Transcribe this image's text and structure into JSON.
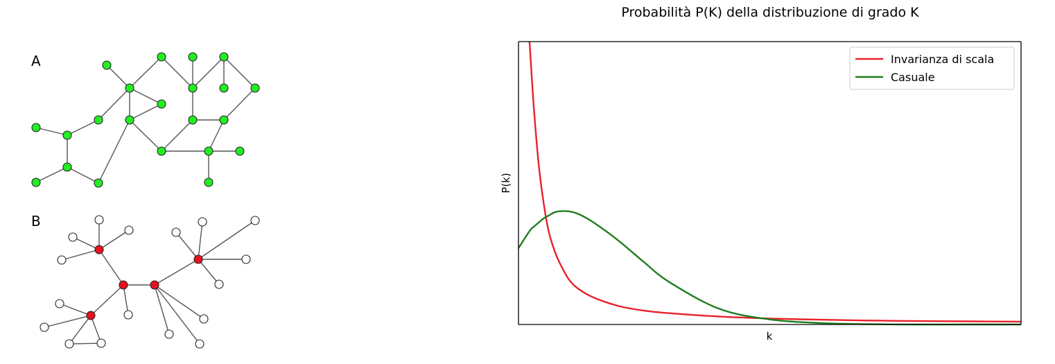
{
  "panels": {
    "a_label": "A",
    "b_label": "B",
    "random_node_color": "#22ee22",
    "hub_node_color": "#e8101e",
    "leaf_node_color": "#ffffff",
    "edge_color": "#555555"
  },
  "chart_data": {
    "type": "line",
    "title": "Probabilità P(K) della distribuzione di grado K",
    "xlabel": "k",
    "ylabel": "P(k)",
    "xlim": [
      0,
      1
    ],
    "ylim": [
      0,
      1
    ],
    "grid": false,
    "legend_position": "top-right",
    "x": [
      0.022,
      0.03,
      0.04,
      0.05,
      0.06,
      0.07,
      0.08,
      0.1,
      0.12,
      0.15,
      0.2,
      0.25,
      0.3,
      0.4,
      0.5,
      0.6,
      0.7,
      0.8,
      0.9,
      1.0
    ],
    "series": [
      {
        "name": "Invarianza di scala",
        "color": "#e8202a",
        "values": [
          1.0,
          0.78,
          0.57,
          0.43,
          0.33,
          0.27,
          0.225,
          0.16,
          0.125,
          0.095,
          0.065,
          0.049,
          0.04,
          0.028,
          0.021,
          0.017,
          0.014,
          0.012,
          0.011,
          0.01
        ]
      },
      {
        "name": "Casuale",
        "color": "#1e7d1e",
        "values": [
          0.33,
          0.345,
          0.36,
          0.375,
          0.385,
          0.395,
          0.4,
          0.4,
          0.39,
          0.36,
          0.295,
          0.22,
          0.15,
          0.055,
          0.018,
          0.005,
          0.001,
          0.0,
          0.0,
          0.0
        ]
      }
    ]
  }
}
